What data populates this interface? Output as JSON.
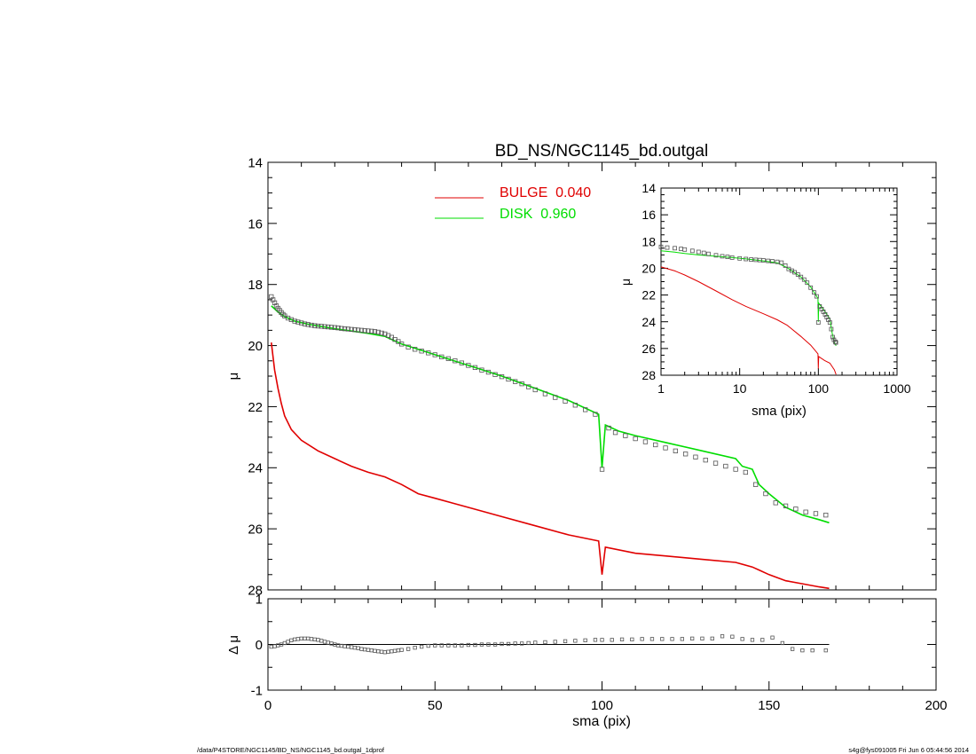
{
  "title": "BD_NS/NGC1145_bd.outgal",
  "footer_left": "/data/P4STORE/NGC1145/BD_NS/NGC1145_bd.outgal_1dprof",
  "footer_right": "s4g@fys091005  Fri Jun  6 05:44:56 2014",
  "colors": {
    "bulge": "#e00000",
    "disk": "#00dd00",
    "data": "#555555",
    "axis": "#000000"
  },
  "chart_data": [
    {
      "id": "main",
      "type": "line",
      "title": "BD_NS/NGC1145_bd.outgal",
      "xlabel": "",
      "ylabel": "μ",
      "xlim": [
        0,
        200
      ],
      "ylim": [
        28,
        14
      ],
      "x_ticks": [
        0,
        50,
        100,
        150,
        200
      ],
      "y_ticks": [
        14,
        16,
        18,
        20,
        22,
        24,
        26,
        28
      ],
      "legend": [
        {
          "label": "BULGE  0.040",
          "color": "#e00000"
        },
        {
          "label": "DISK  0.960",
          "color": "#00dd00"
        }
      ],
      "series": [
        {
          "name": "BULGE",
          "style": "line",
          "color": "#e00000",
          "x": [
            1,
            2,
            3,
            4,
            5,
            7,
            10,
            15,
            20,
            25,
            30,
            35,
            40,
            45,
            50,
            60,
            70,
            80,
            90,
            99,
            100,
            101,
            110,
            120,
            130,
            140,
            145,
            147,
            150,
            155,
            160,
            165,
            168
          ],
          "y": [
            19.9,
            20.8,
            21.4,
            21.9,
            22.3,
            22.75,
            23.1,
            23.45,
            23.7,
            23.95,
            24.15,
            24.3,
            24.55,
            24.85,
            25.0,
            25.3,
            25.6,
            25.9,
            26.2,
            26.4,
            27.5,
            26.6,
            26.8,
            26.9,
            27.0,
            27.1,
            27.25,
            27.35,
            27.5,
            27.7,
            27.8,
            27.9,
            27.95
          ]
        },
        {
          "name": "DISK",
          "style": "line",
          "color": "#00dd00",
          "x": [
            1,
            3,
            5,
            8,
            12,
            20,
            30,
            35,
            40,
            50,
            60,
            70,
            80,
            90,
            99,
            100,
            101,
            105,
            110,
            120,
            130,
            140,
            142,
            145,
            147,
            150,
            155,
            160,
            165,
            168
          ],
          "y": [
            18.7,
            18.9,
            19.05,
            19.2,
            19.3,
            19.45,
            19.6,
            19.7,
            19.95,
            20.3,
            20.65,
            21.0,
            21.4,
            21.8,
            22.25,
            24.0,
            22.6,
            22.8,
            22.95,
            23.2,
            23.45,
            23.7,
            23.95,
            24.05,
            24.55,
            24.85,
            25.3,
            25.55,
            25.7,
            25.8
          ]
        },
        {
          "name": "data",
          "style": "marker",
          "color": "#555555",
          "x": [
            1,
            1.5,
            2,
            2.5,
            3,
            3.5,
            4,
            4.5,
            5,
            6,
            7,
            8,
            9,
            10,
            11,
            12,
            13,
            14,
            15,
            16,
            17,
            18,
            19,
            20,
            21,
            22,
            23,
            24,
            25,
            26,
            27,
            28,
            29,
            30,
            31,
            32,
            33,
            34,
            35,
            36,
            37,
            38,
            39,
            40,
            42,
            44,
            46,
            48,
            50,
            52,
            54,
            56,
            58,
            60,
            62,
            64,
            66,
            68,
            70,
            72,
            74,
            76,
            78,
            80,
            83,
            86,
            89,
            92,
            95,
            98,
            100,
            102,
            104,
            107,
            110,
            113,
            116,
            119,
            122,
            125,
            128,
            131,
            134,
            137,
            140,
            143,
            146,
            149,
            152,
            155,
            158,
            161,
            164,
            167
          ],
          "y": [
            18.4,
            18.5,
            18.6,
            18.7,
            18.78,
            18.85,
            18.92,
            18.98,
            19.03,
            19.1,
            19.15,
            19.2,
            19.23,
            19.26,
            19.29,
            19.31,
            19.33,
            19.35,
            19.36,
            19.37,
            19.38,
            19.39,
            19.4,
            19.41,
            19.42,
            19.44,
            19.45,
            19.46,
            19.47,
            19.48,
            19.49,
            19.5,
            19.51,
            19.52,
            19.53,
            19.54,
            19.56,
            19.59,
            19.62,
            19.67,
            19.73,
            19.8,
            19.87,
            19.95,
            20.05,
            20.12,
            20.18,
            20.24,
            20.3,
            20.37,
            20.43,
            20.5,
            20.57,
            20.65,
            20.72,
            20.8,
            20.87,
            20.95,
            21.02,
            21.1,
            21.18,
            21.25,
            21.35,
            21.45,
            21.58,
            21.7,
            21.82,
            21.95,
            22.1,
            22.25,
            24.05,
            22.7,
            22.85,
            22.95,
            23.05,
            23.15,
            23.25,
            23.35,
            23.45,
            23.55,
            23.65,
            23.75,
            23.85,
            23.95,
            24.05,
            24.15,
            24.55,
            24.85,
            25.15,
            25.25,
            25.35,
            25.45,
            25.5,
            25.55
          ]
        }
      ]
    },
    {
      "id": "residual",
      "type": "scatter",
      "xlabel": "sma (pix)",
      "ylabel": "Δ μ",
      "xlim": [
        0,
        200
      ],
      "ylim": [
        -1,
        1
      ],
      "x_ticks": [
        0,
        50,
        100,
        150,
        200
      ],
      "y_ticks": [
        1,
        0,
        -1
      ],
      "zero_line": {
        "x": [
          0,
          168
        ],
        "y": 0
      },
      "series": [
        {
          "name": "residual",
          "style": "marker",
          "color": "#555555",
          "x": [
            1,
            2,
            3,
            4,
            5,
            6,
            7,
            8,
            9,
            10,
            11,
            12,
            13,
            14,
            15,
            16,
            17,
            18,
            19,
            20,
            21,
            22,
            23,
            24,
            25,
            26,
            27,
            28,
            29,
            30,
            31,
            32,
            33,
            34,
            35,
            36,
            37,
            38,
            39,
            40,
            42,
            44,
            46,
            48,
            50,
            52,
            54,
            56,
            58,
            60,
            62,
            64,
            66,
            68,
            70,
            72,
            74,
            76,
            78,
            80,
            83,
            86,
            89,
            92,
            95,
            98,
            100,
            103,
            106,
            109,
            112,
            115,
            118,
            121,
            124,
            127,
            130,
            133,
            136,
            139,
            142,
            145,
            148,
            151,
            154,
            157,
            160,
            163,
            167
          ],
          "y": [
            -0.05,
            -0.04,
            -0.02,
            0.0,
            0.03,
            0.06,
            0.09,
            0.11,
            0.12,
            0.13,
            0.13,
            0.13,
            0.12,
            0.11,
            0.1,
            0.08,
            0.06,
            0.04,
            0.02,
            0.0,
            -0.02,
            -0.03,
            -0.04,
            -0.05,
            -0.06,
            -0.07,
            -0.08,
            -0.1,
            -0.11,
            -0.12,
            -0.13,
            -0.14,
            -0.15,
            -0.16,
            -0.17,
            -0.16,
            -0.15,
            -0.14,
            -0.13,
            -0.12,
            -0.1,
            -0.07,
            -0.05,
            -0.03,
            -0.02,
            -0.02,
            -0.02,
            -0.02,
            -0.02,
            -0.01,
            -0.01,
            0.0,
            0.0,
            0.0,
            0.01,
            0.01,
            0.02,
            0.02,
            0.03,
            0.04,
            0.05,
            0.06,
            0.07,
            0.08,
            0.09,
            0.1,
            0.1,
            0.1,
            0.11,
            0.11,
            0.12,
            0.12,
            0.12,
            0.12,
            0.12,
            0.13,
            0.13,
            0.13,
            0.18,
            0.17,
            0.12,
            0.1,
            0.1,
            0.15,
            0.03,
            -0.1,
            -0.13,
            -0.13,
            -0.13
          ]
        }
      ]
    },
    {
      "id": "inset",
      "type": "line",
      "xlabel": "sma (pix)",
      "ylabel": "μ",
      "x_scale": "log",
      "xlim": [
        1,
        1000
      ],
      "ylim": [
        28,
        14
      ],
      "x_tick_labels": [
        "1",
        "10",
        "100",
        "1000"
      ],
      "x_ticks": [
        1,
        10,
        100,
        1000
      ],
      "y_ticks": [
        14,
        16,
        18,
        20,
        22,
        24,
        26,
        28
      ],
      "series": [
        {
          "name": "BULGE",
          "style": "line",
          "color": "#e00000",
          "x": [
            1,
            1.5,
            2,
            3,
            5,
            8,
            12,
            20,
            30,
            40,
            60,
            80,
            99,
            100,
            101,
            120,
            140,
            160,
            168
          ],
          "y": [
            19.9,
            20.2,
            20.5,
            21.0,
            21.7,
            22.35,
            22.85,
            23.4,
            23.85,
            24.25,
            25.1,
            25.75,
            26.4,
            27.5,
            26.6,
            26.9,
            27.1,
            27.6,
            27.95
          ]
        },
        {
          "name": "DISK",
          "style": "line",
          "color": "#00dd00",
          "x": [
            1,
            1.5,
            2,
            3,
            5,
            8,
            12,
            20,
            30,
            40,
            60,
            80,
            99,
            100,
            101,
            120,
            140,
            150,
            160,
            168
          ],
          "y": [
            18.7,
            18.8,
            18.9,
            19.0,
            19.1,
            19.2,
            19.3,
            19.45,
            19.6,
            19.95,
            20.65,
            21.4,
            22.25,
            24.0,
            22.6,
            23.2,
            23.8,
            24.85,
            25.55,
            25.8
          ]
        },
        {
          "name": "data",
          "style": "marker",
          "color": "#555555",
          "x": [
            1,
            1.2,
            1.5,
            1.8,
            2,
            2.5,
            3,
            3.5,
            4,
            5,
            6,
            7,
            8,
            10,
            12,
            14,
            16,
            18,
            20,
            23,
            26,
            30,
            34,
            38,
            42,
            46,
            50,
            55,
            60,
            66,
            72,
            80,
            88,
            95,
            100,
            104,
            110,
            116,
            122,
            128,
            134,
            140,
            146,
            152,
            158,
            164,
            167
          ],
          "y": [
            18.4,
            18.45,
            18.5,
            18.55,
            18.6,
            18.7,
            18.78,
            18.85,
            18.92,
            19.03,
            19.1,
            19.15,
            19.2,
            19.26,
            19.31,
            19.35,
            19.37,
            19.39,
            19.41,
            19.45,
            19.48,
            19.52,
            19.58,
            19.8,
            20.05,
            20.18,
            20.3,
            20.47,
            20.65,
            20.85,
            21.08,
            21.45,
            21.8,
            22.1,
            24.05,
            22.85,
            23.05,
            23.25,
            23.45,
            23.65,
            23.85,
            24.05,
            24.55,
            25.15,
            25.35,
            25.5,
            25.55
          ]
        }
      ]
    }
  ]
}
